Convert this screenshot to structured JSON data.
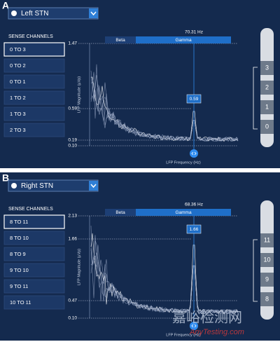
{
  "panels": [
    {
      "letter": "A",
      "hemisphere": "Left STN",
      "channels_header": "SENSE CHANNELS",
      "channels": [
        "0 TO 3",
        "0 TO 2",
        "0 TO 1",
        "1 TO 2",
        "1 TO 3",
        "2 TO 3"
      ],
      "y_axis_label": "LFP Magnitude (µVp)",
      "x_axis_label": "LFP Frequency (Hz)",
      "y_labels": [
        "1.47",
        "0.59",
        "0.19",
        "0.10"
      ],
      "bands": [
        "Beta",
        "Gamma"
      ],
      "frequency": "70.31 Hz",
      "peak": "0.59",
      "contacts": [
        "3",
        "2",
        "1",
        "0"
      ]
    },
    {
      "letter": "B",
      "hemisphere": "Right STN",
      "channels_header": "SENSE CHANNELS",
      "channels": [
        "8 TO 11",
        "8 TO 10",
        "8 TO 9",
        "9 TO 10",
        "9 TO 11",
        "10 TO 11"
      ],
      "y_axis_label": "LFP Magnitude (µVp)",
      "x_axis_label": "LFP Frequency (Hz)",
      "y_labels": [
        "2.13",
        "1.66",
        "0.47",
        "0.10"
      ],
      "bands": [
        "Beta",
        "Gamma"
      ],
      "frequency": "68.36 Hz",
      "peak": "1.66",
      "contacts": [
        "11",
        "10",
        "9",
        "8"
      ]
    }
  ],
  "watermark": {
    "main": "嘉峪检测网",
    "sub": "AnyTesting.com"
  }
}
